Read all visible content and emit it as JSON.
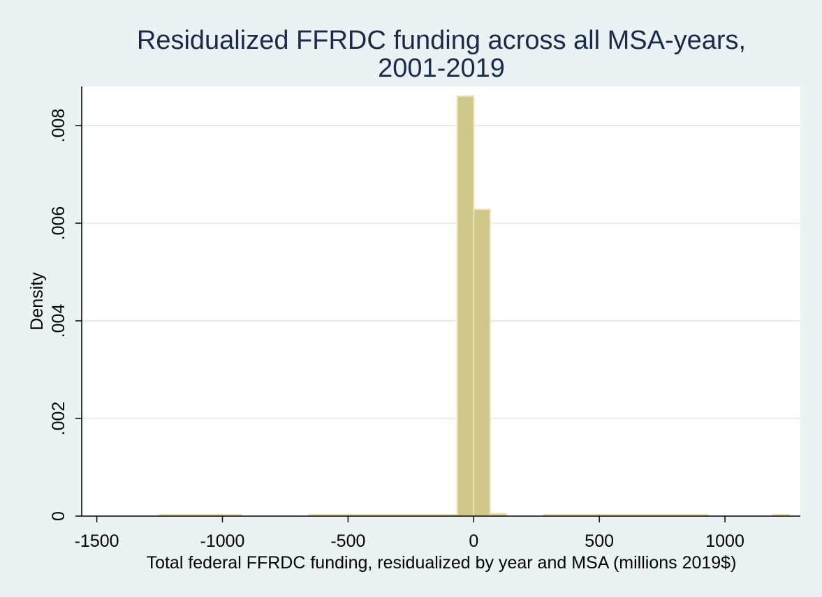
{
  "chart_data": {
    "type": "bar",
    "title_lines": [
      "Residualized FFRDC funding across all MSA-years,",
      "2001-2019"
    ],
    "xlabel": "Total federal FFRDC funding, residualized by year and MSA (millions 2019$)",
    "ylabel": "Density",
    "xlim": [
      -1560,
      1300
    ],
    "ylim": [
      0,
      0.0088
    ],
    "x_ticks": [
      -1500,
      -1000,
      -500,
      0,
      500,
      1000
    ],
    "x_tick_labels": [
      "-1500",
      "-1000",
      "-500",
      "0",
      "500",
      "1000"
    ],
    "y_ticks": [
      0,
      0.002,
      0.004,
      0.006,
      0.008
    ],
    "y_tick_labels": [
      "0",
      ".002",
      ".004",
      ".006",
      ".008"
    ],
    "grid": true,
    "bin_width": 65,
    "bins": [
      {
        "start": -1250,
        "end": -1185,
        "density": 1e-05
      },
      {
        "start": -1185,
        "end": -1120,
        "density": 1e-05
      },
      {
        "start": -1120,
        "end": -1055,
        "density": 1e-05
      },
      {
        "start": -1055,
        "end": -990,
        "density": 1e-05
      },
      {
        "start": -990,
        "end": -925,
        "density": 1e-05
      },
      {
        "start": -655,
        "end": -590,
        "density": 1e-05
      },
      {
        "start": -590,
        "end": -525,
        "density": 1e-05
      },
      {
        "start": -525,
        "end": -460,
        "density": 1e-05
      },
      {
        "start": -460,
        "end": -395,
        "density": 1e-05
      },
      {
        "start": -395,
        "end": -330,
        "density": 1e-05
      },
      {
        "start": -330,
        "end": -265,
        "density": 1e-05
      },
      {
        "start": -265,
        "end": -200,
        "density": 1e-05
      },
      {
        "start": -200,
        "end": -135,
        "density": 1e-05
      },
      {
        "start": -135,
        "end": -70,
        "density": 2e-05
      },
      {
        "start": -65,
        "end": 0,
        "density": 0.0086
      },
      {
        "start": 0,
        "end": 65,
        "density": 0.00628
      },
      {
        "start": 65,
        "end": 130,
        "density": 5e-05
      },
      {
        "start": 280,
        "end": 345,
        "density": 1e-05
      },
      {
        "start": 345,
        "end": 410,
        "density": 1e-05
      },
      {
        "start": 410,
        "end": 475,
        "density": 1e-05
      },
      {
        "start": 475,
        "end": 540,
        "density": 1e-05
      },
      {
        "start": 540,
        "end": 605,
        "density": 1e-05
      },
      {
        "start": 605,
        "end": 670,
        "density": 1e-05
      },
      {
        "start": 670,
        "end": 735,
        "density": 1e-05
      },
      {
        "start": 735,
        "end": 800,
        "density": 1e-05
      },
      {
        "start": 800,
        "end": 865,
        "density": 1e-05
      },
      {
        "start": 865,
        "end": 930,
        "density": 1e-05
      },
      {
        "start": 1190,
        "end": 1255,
        "density": 1e-05
      }
    ],
    "colors": {
      "background": "#eaf2f3",
      "plot_background": "#ffffff",
      "bar_fill": "#d1c78a",
      "bar_stroke": "#e6dfb0",
      "grid": "#e4eef0",
      "axis": "#000000",
      "title": "#1a2a4a"
    }
  }
}
